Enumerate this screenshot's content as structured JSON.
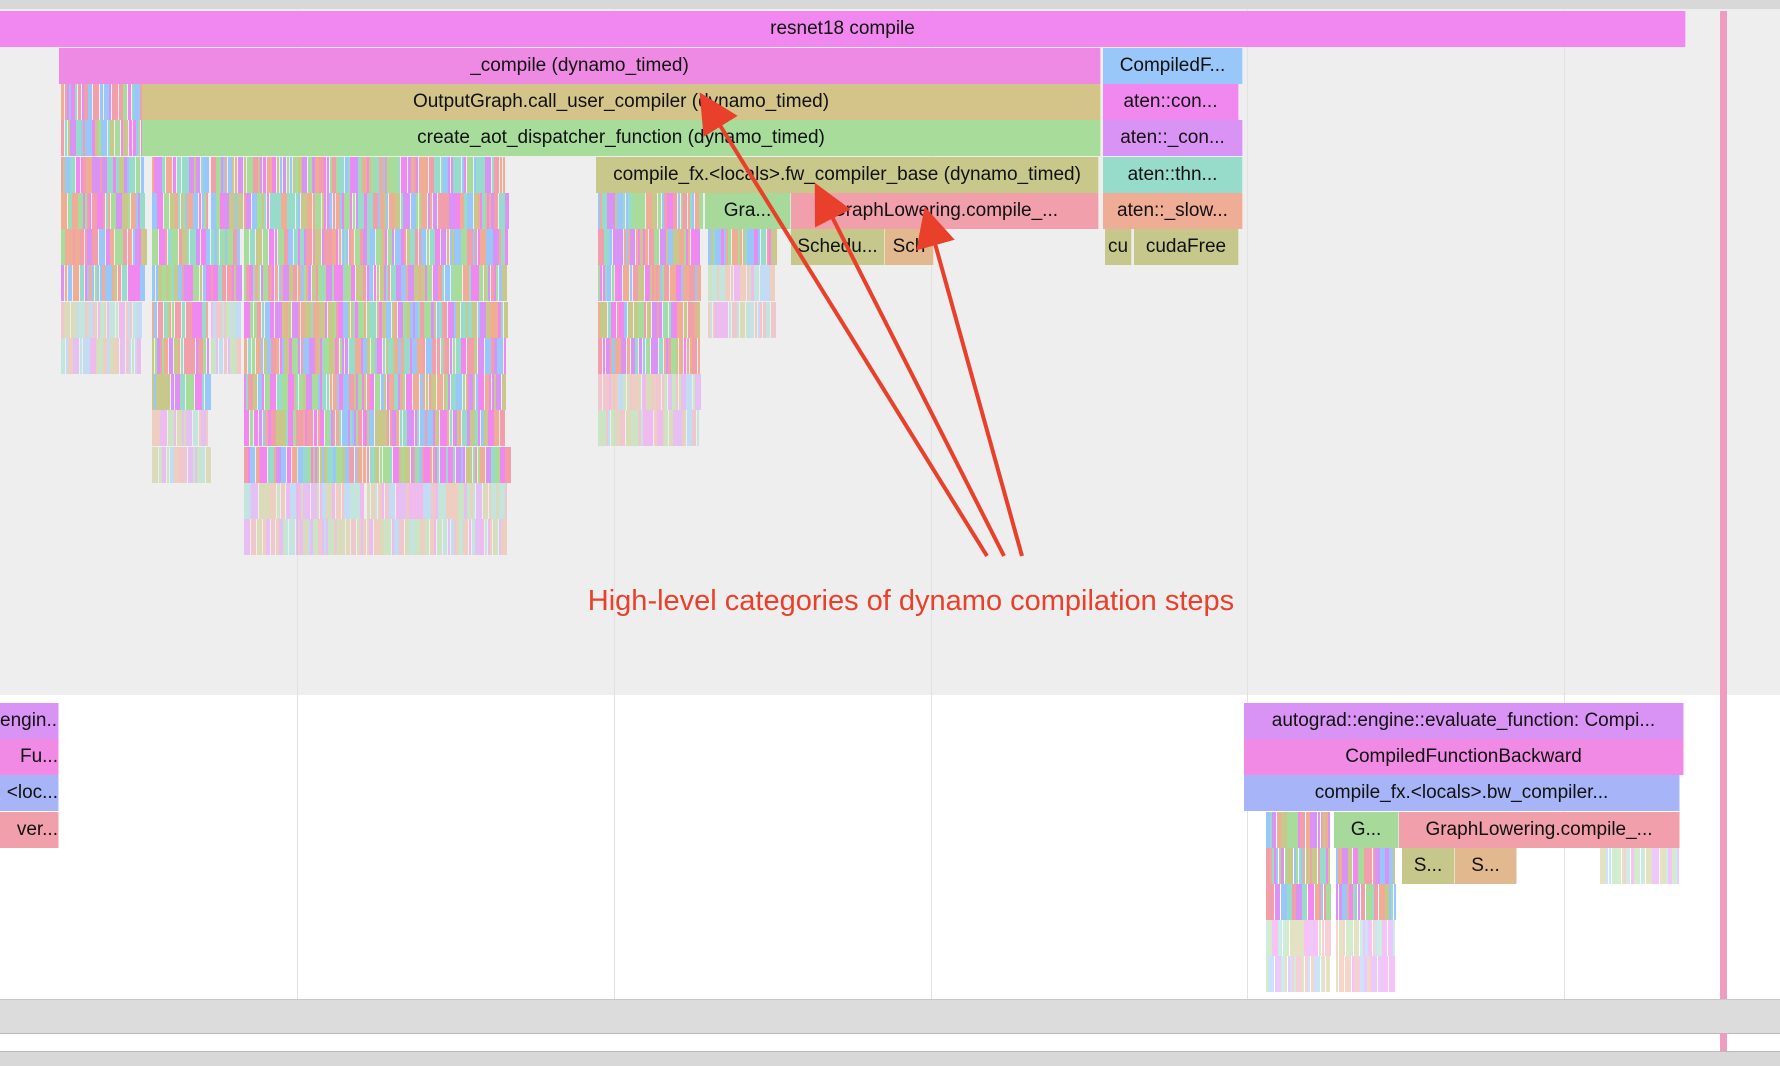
{
  "trace": {
    "upper": {
      "row0": {
        "root": "resnet18 compile"
      },
      "row1": {
        "compile": "_compile (dynamo_timed)",
        "compiled_f": "CompiledF..."
      },
      "row2": {
        "output_graph": "OutputGraph.call_user_compiler (dynamo_timed)",
        "aten_con": "aten::con..."
      },
      "row3": {
        "create_aot": "create_aot_dispatcher_function (dynamo_timed)",
        "aten_con2": "aten::_con..."
      },
      "row4": {
        "fw_compiler": "compile_fx.<locals>.fw_compiler_base (dynamo_timed)",
        "aten_thn": "aten::thn..."
      },
      "row5": {
        "gra": "Gra...",
        "graph_lowering": "GraphLowering.compile_...",
        "aten_slow": "aten::_slow..."
      },
      "row6": {
        "schedu": "Schedu...",
        "sch": "Sch",
        "cu": "cu",
        "cuda_free": "cudaFree"
      }
    },
    "lower": {
      "left": [
        "engin...",
        "Fu...",
        "<loc...",
        "ver..."
      ],
      "row0": "autograd::engine::evaluate_function: Compi...",
      "row1": "CompiledFunctionBackward",
      "row2": "compile_fx.<locals>.bw_compiler...",
      "row3": {
        "g": "G...",
        "graph_lowering": "GraphLowering.compile_..."
      },
      "row4": {
        "s1": "S...",
        "s2": "S..."
      }
    }
  },
  "annotation": {
    "text": "High-level categories of dynamo compilation steps",
    "color": "#e8402a"
  },
  "colors": {
    "magenta": "#f088f0",
    "pink": "#ee8ae4",
    "blue": "#99c7fa",
    "tan": "#d4c48a",
    "green": "#a8dc9a",
    "purple": "#d993f5",
    "olive": "#c8c88a",
    "teal": "#97dccb",
    "rose": "#f19fab",
    "salmon": "#f0ad96",
    "periwinkle": "#a8b4f8",
    "orange": "#e2b98e"
  }
}
